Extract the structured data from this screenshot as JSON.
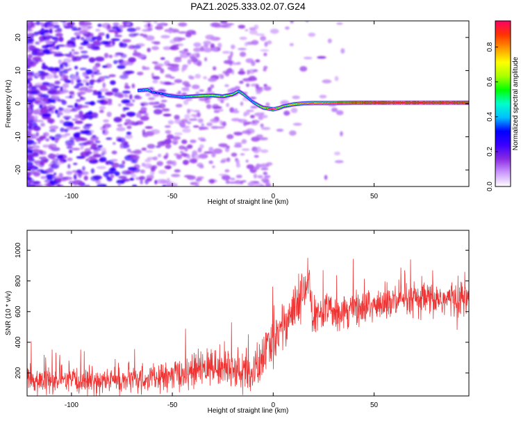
{
  "title": "PAZ1.2025.333.02.07.G24",
  "chart_data": [
    {
      "type": "heatmap",
      "title": "PAZ1.2025.333.02.07.G24",
      "xlabel": "Height of straight line (km)",
      "ylabel": "Frequency (Hz)",
      "xlim": [
        -122,
        97
      ],
      "ylim": [
        -25,
        25
      ],
      "xticks": [
        -100,
        -50,
        0,
        50
      ],
      "xtick_labels": [
        "-100",
        "-50",
        "0",
        "50"
      ],
      "yticks": [
        -20,
        -10,
        0,
        10,
        20
      ],
      "ytick_labels": [
        "-20",
        "-10",
        "0",
        "10",
        "20"
      ],
      "colorbar": {
        "label": "Normalized spectral amplitude",
        "range": [
          0,
          0.95
        ],
        "ticks": [
          0,
          0.2,
          0.4,
          0.6,
          0.8
        ],
        "tick_labels": [
          "0.0",
          "0.2",
          "0.4",
          "0.6",
          "0.8"
        ],
        "colors": [
          "#ffffff",
          "#cc99ff",
          "#8a2be2",
          "#3a00ff",
          "#0000ff",
          "#00bfff",
          "#00ffcc",
          "#00ff00",
          "#aaff00",
          "#ffff00",
          "#ff9900",
          "#ff3300",
          "#ff0066"
        ]
      },
      "ridge": {
        "x": [
          -67,
          -62,
          -60,
          -55,
          -52,
          -48,
          -45,
          -40,
          -35,
          -30,
          -25,
          -20,
          -17,
          -15,
          -12,
          -10,
          -7,
          -5,
          -2,
          0,
          3,
          5,
          10,
          15,
          20,
          25,
          30,
          40,
          50,
          60,
          70,
          80,
          90,
          97
        ],
        "freq": [
          4,
          4.2,
          3.5,
          3,
          2.5,
          2.2,
          2,
          2.2,
          2.4,
          2.5,
          2.2,
          2.8,
          3.8,
          3,
          1.5,
          0.5,
          -0.6,
          -1.2,
          -1.5,
          -1.7,
          -1.3,
          -0.8,
          -0.2,
          0.1,
          0.2,
          0.2,
          0.2,
          0.3,
          0.3,
          0.3,
          0.3,
          0.3,
          0.3,
          0.3
        ],
        "amplitude": [
          0.3,
          0.35,
          0.25,
          0.28,
          0.3,
          0.3,
          0.35,
          0.4,
          0.5,
          0.5,
          0.45,
          0.45,
          0.4,
          0.45,
          0.35,
          0.3,
          0.45,
          0.55,
          0.72,
          0.75,
          0.55,
          0.45,
          0.55,
          0.6,
          0.62,
          0.65,
          0.7,
          0.8,
          0.88,
          0.9,
          0.9,
          0.88,
          0.85,
          0.85
        ]
      }
    },
    {
      "type": "line",
      "title": "",
      "xlabel": "Height of straight line (km)",
      "ylabel": "SNR (10 * v/v)",
      "xlim": [
        -122,
        97
      ],
      "ylim": [
        50,
        1130
      ],
      "xticks": [
        -100,
        -50,
        0,
        50
      ],
      "xtick_labels": [
        "-100",
        "-50",
        "0",
        "50"
      ],
      "yticks": [
        200,
        400,
        600,
        800,
        1000
      ],
      "ytick_labels": [
        "200",
        "400",
        "600",
        "800",
        "1000"
      ],
      "color": "#ee3333",
      "trend": {
        "x": [
          -122,
          -100,
          -80,
          -60,
          -50,
          -40,
          -30,
          -20,
          -15,
          -10,
          -5,
          0,
          5,
          10,
          15,
          18,
          19,
          20,
          25,
          30,
          40,
          50,
          60,
          70,
          80,
          90,
          97
        ],
        "mean": [
          150,
          145,
          150,
          160,
          180,
          210,
          240,
          235,
          200,
          190,
          300,
          420,
          520,
          600,
          700,
          820,
          600,
          560,
          600,
          610,
          620,
          640,
          660,
          670,
          680,
          680,
          690
        ],
        "spread": [
          80,
          80,
          80,
          80,
          90,
          100,
          110,
          110,
          120,
          130,
          140,
          140,
          140,
          150,
          150,
          150,
          120,
          110,
          110,
          110,
          110,
          110,
          110,
          110,
          110,
          110,
          110
        ]
      }
    }
  ]
}
